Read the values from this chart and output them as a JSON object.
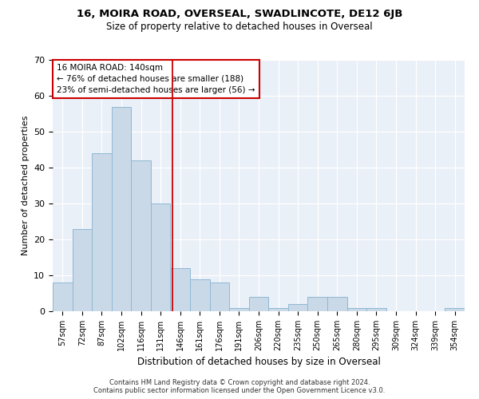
{
  "title1": "16, MOIRA ROAD, OVERSEAL, SWADLINCOTE, DE12 6JB",
  "title2": "Size of property relative to detached houses in Overseal",
  "xlabel": "Distribution of detached houses by size in Overseal",
  "ylabel": "Number of detached properties",
  "categories": [
    "57sqm",
    "72sqm",
    "87sqm",
    "102sqm",
    "116sqm",
    "131sqm",
    "146sqm",
    "161sqm",
    "176sqm",
    "191sqm",
    "206sqm",
    "220sqm",
    "235sqm",
    "250sqm",
    "265sqm",
    "280sqm",
    "295sqm",
    "309sqm",
    "324sqm",
    "339sqm",
    "354sqm"
  ],
  "values": [
    8,
    23,
    44,
    57,
    42,
    30,
    12,
    9,
    8,
    1,
    4,
    1,
    2,
    4,
    4,
    1,
    1,
    0,
    0,
    0,
    1
  ],
  "bar_color": "#c9d9e8",
  "bar_edge_color": "#8fb8d4",
  "vline_color": "#cc0000",
  "annotation_title": "16 MOIRA ROAD: 140sqm",
  "annotation_line1": "← 76% of detached houses are smaller (188)",
  "annotation_line2": "23% of semi-detached houses are larger (56) →",
  "annotation_box_color": "#cc0000",
  "bg_color": "#eaf0f8",
  "ylim": [
    0,
    70
  ],
  "yticks": [
    0,
    10,
    20,
    30,
    40,
    50,
    60,
    70
  ],
  "footer1": "Contains HM Land Registry data © Crown copyright and database right 2024.",
  "footer2": "Contains public sector information licensed under the Open Government Licence v3.0."
}
